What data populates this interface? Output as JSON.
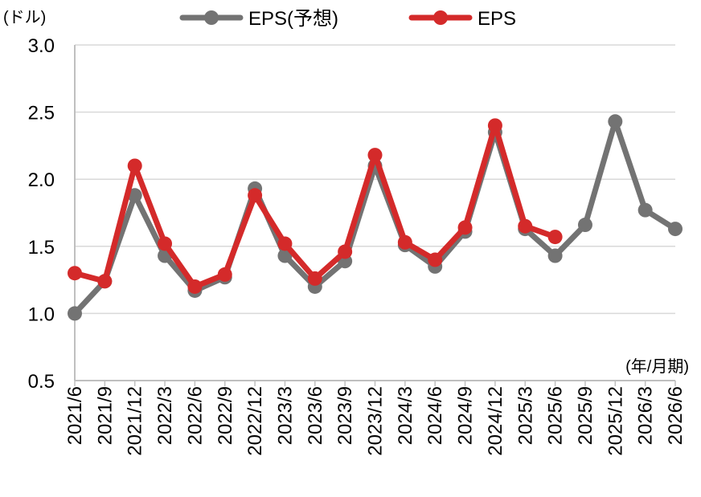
{
  "chart_data": {
    "type": "line",
    "ylabel": "(ドル)",
    "xlabel": "(年/月期)",
    "ylim": [
      0.5,
      3.0
    ],
    "yticks": [
      "0.5",
      "1.0",
      "1.5",
      "2.0",
      "2.5",
      "3.0"
    ],
    "grid": true,
    "legend_position": "top",
    "categories": [
      "2021/6",
      "2021/9",
      "2021/12",
      "2022/3",
      "2022/6",
      "2022/9",
      "2022/12",
      "2023/3",
      "2023/6",
      "2023/9",
      "2023/12",
      "2024/3",
      "2024/6",
      "2024/9",
      "2024/12",
      "2025/3",
      "2025/6",
      "2025/9",
      "2025/12",
      "2026/3",
      "2026/6"
    ],
    "series": [
      {
        "name": "EPS(予想)",
        "color": "#737373",
        "values": [
          1.0,
          1.24,
          1.88,
          1.43,
          1.17,
          1.27,
          1.93,
          1.43,
          1.2,
          1.39,
          2.1,
          1.51,
          1.35,
          1.61,
          2.35,
          1.63,
          1.43,
          1.66,
          2.43,
          1.77,
          1.63
        ]
      },
      {
        "name": "EPS",
        "color": "#d42a2a",
        "values": [
          1.3,
          1.24,
          2.1,
          1.52,
          1.2,
          1.29,
          1.88,
          1.52,
          1.26,
          1.46,
          2.18,
          1.53,
          1.4,
          1.64,
          2.4,
          1.65,
          1.57,
          null,
          null,
          null,
          null
        ]
      }
    ]
  }
}
